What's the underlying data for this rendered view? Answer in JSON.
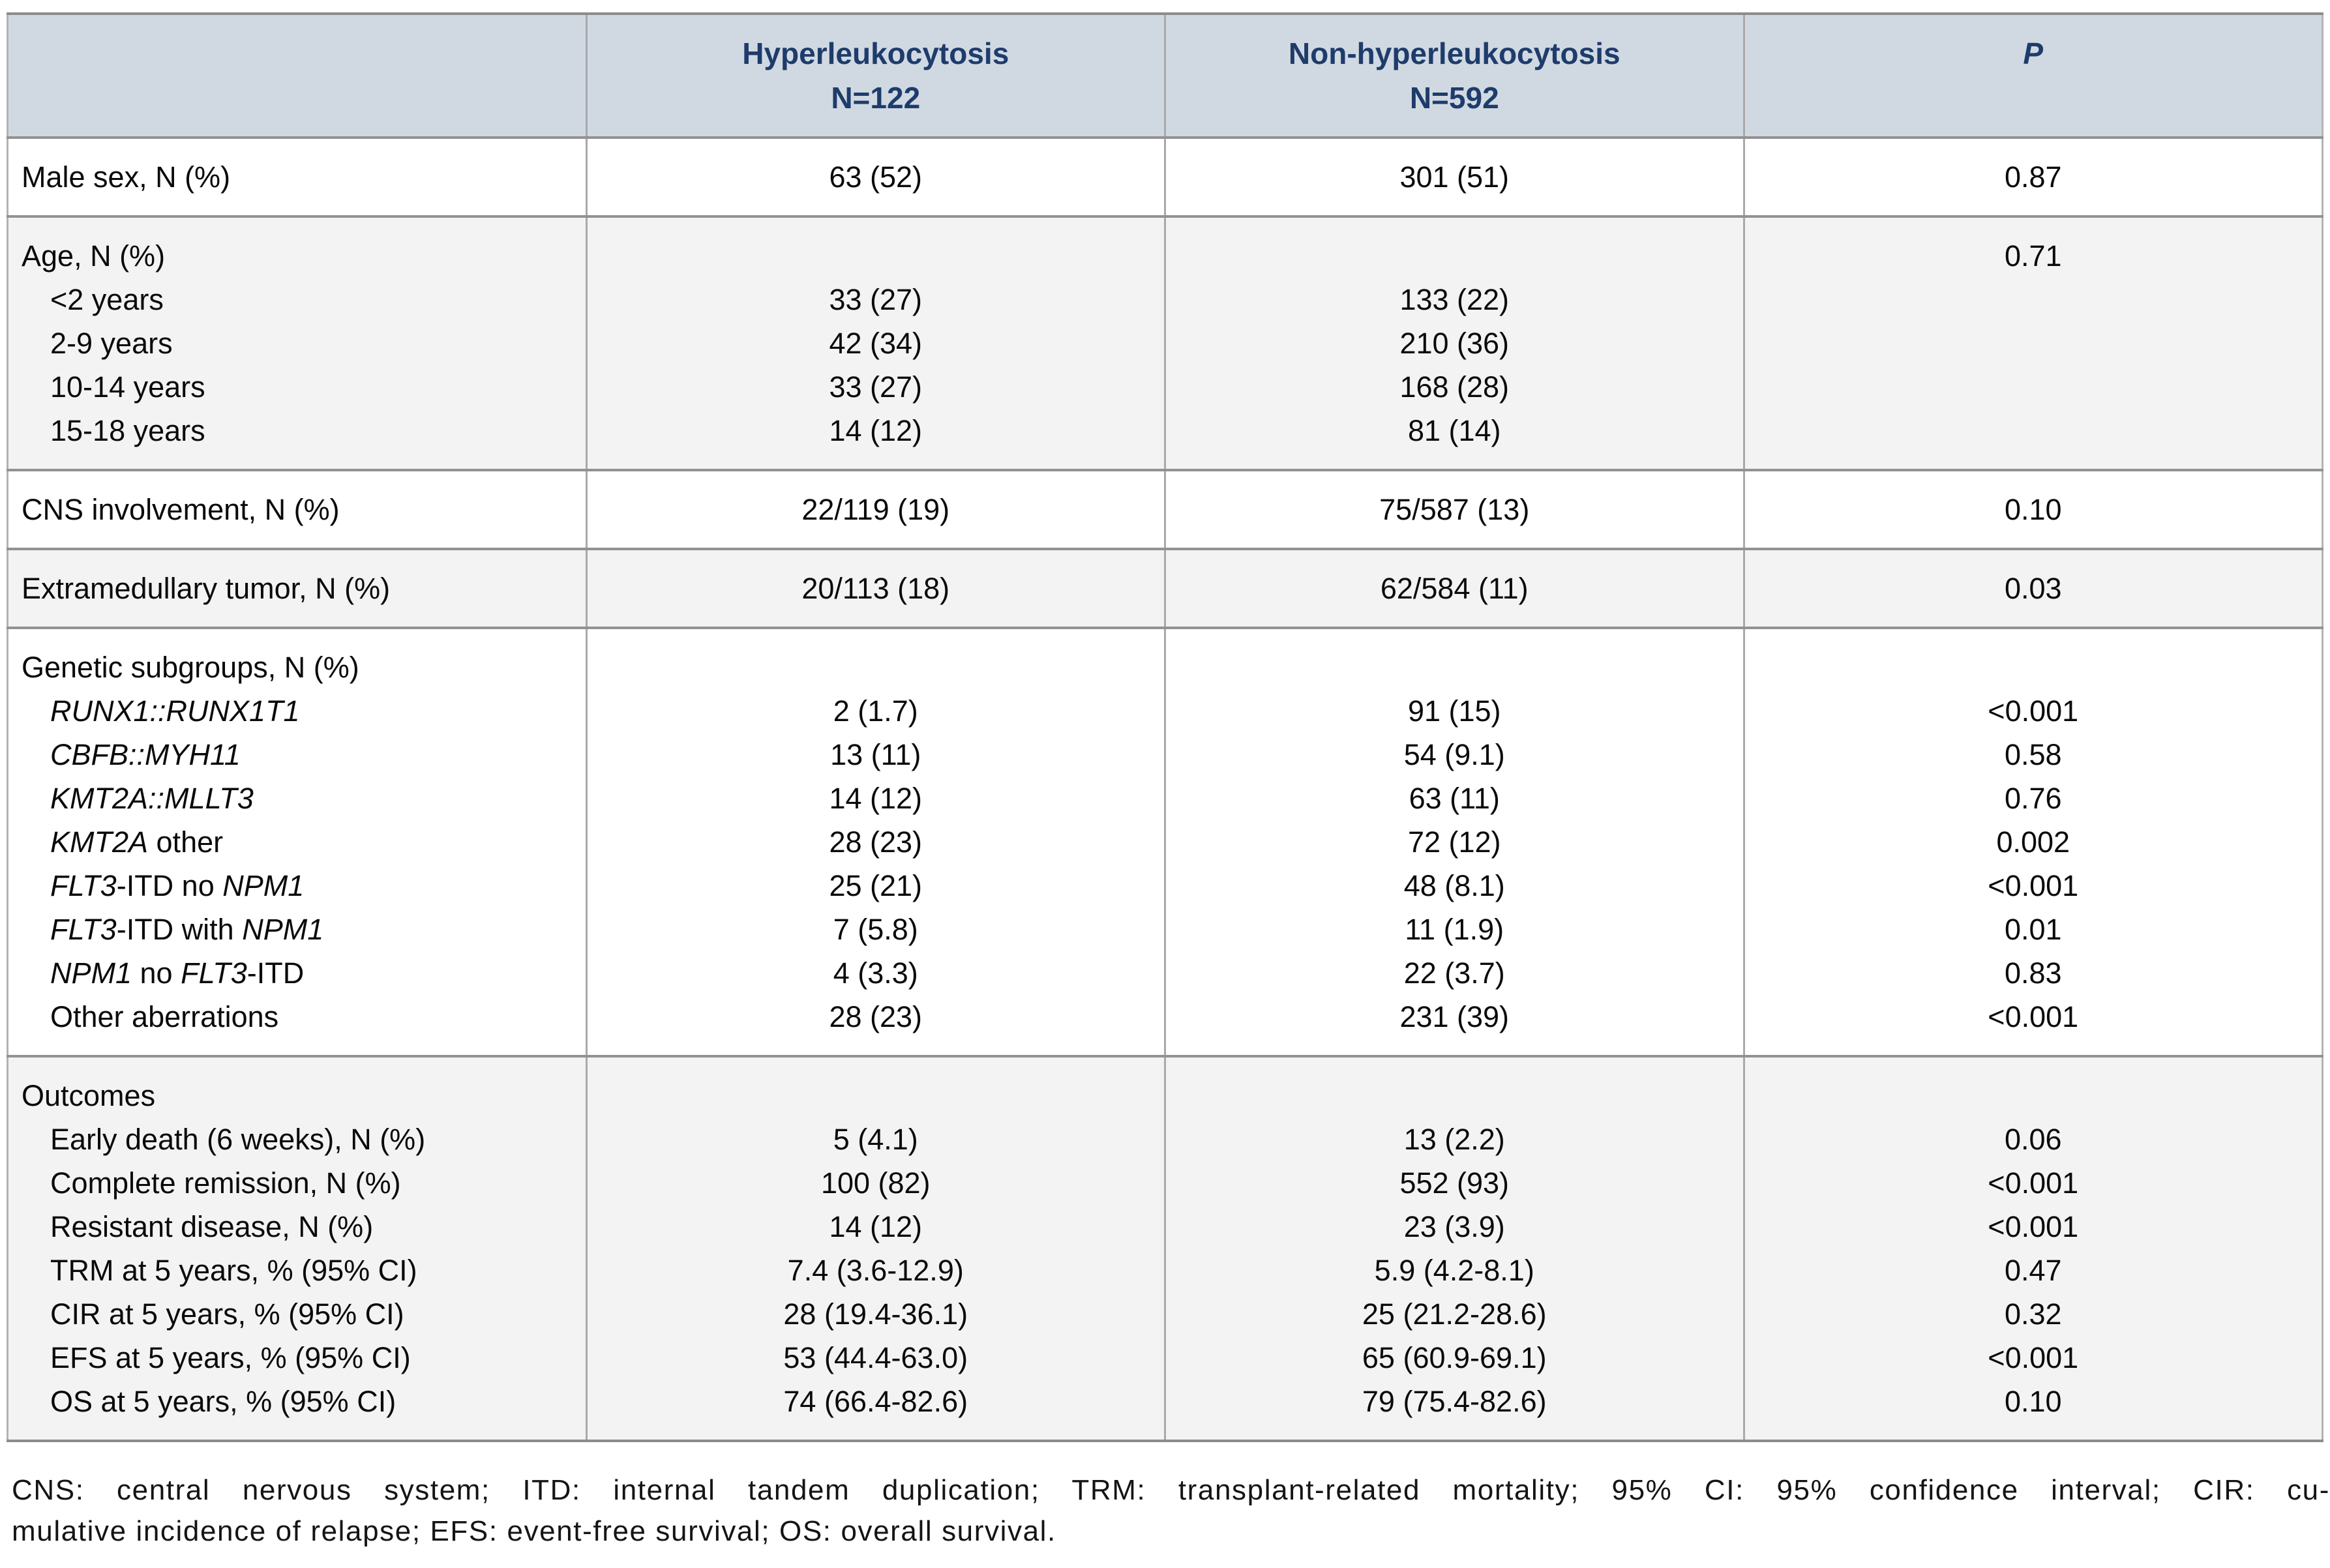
{
  "colors": {
    "header_bg": "#d0d9e2",
    "header_text": "#1e3c6b",
    "shaded_row_bg": "#f3f3f3",
    "horizontal_rule": "#929292",
    "vertical_rule": "#a9a9a9"
  },
  "table": {
    "header": {
      "empty": "",
      "col2": {
        "line1": "Hyperleukocytosis",
        "line2": "N=122"
      },
      "col3": {
        "line1": "Non-hyperleukocytosis",
        "line2": "N=592"
      },
      "p": "P"
    },
    "sections": [
      {
        "name": "male-sex",
        "shaded": false,
        "labels": [
          {
            "indent": false,
            "segments": [
              {
                "text": "Male sex, N (%)",
                "italic": false
              }
            ]
          }
        ],
        "col2": [
          "63 (52)"
        ],
        "col3": [
          "301 (51)"
        ],
        "p": [
          "0.87"
        ]
      },
      {
        "name": "age",
        "shaded": true,
        "labels": [
          {
            "indent": false,
            "segments": [
              {
                "text": "Age, N (%)",
                "italic": false
              }
            ]
          },
          {
            "indent": true,
            "segments": [
              {
                "text": "<2 years",
                "italic": false
              }
            ]
          },
          {
            "indent": true,
            "segments": [
              {
                "text": "2-9 years",
                "italic": false
              }
            ]
          },
          {
            "indent": true,
            "segments": [
              {
                "text": "10-14 years",
                "italic": false
              }
            ]
          },
          {
            "indent": true,
            "segments": [
              {
                "text": "15-18 years",
                "italic": false
              }
            ]
          }
        ],
        "col2": [
          "",
          "33 (27)",
          "42 (34)",
          "33 (27)",
          "14 (12)"
        ],
        "col3": [
          "",
          "133 (22)",
          "210 (36)",
          "168 (28)",
          "81 (14)"
        ],
        "p": [
          "0.71",
          "",
          "",
          "",
          ""
        ]
      },
      {
        "name": "cns-involvement",
        "shaded": false,
        "labels": [
          {
            "indent": false,
            "segments": [
              {
                "text": "CNS involvement, N (%)",
                "italic": false
              }
            ]
          }
        ],
        "col2": [
          "22/119 (19)"
        ],
        "col3": [
          "75/587 (13)"
        ],
        "p": [
          "0.10"
        ]
      },
      {
        "name": "extramedullary-tumor",
        "shaded": true,
        "labels": [
          {
            "indent": false,
            "segments": [
              {
                "text": "Extramedullary tumor, N (%)",
                "italic": false
              }
            ]
          }
        ],
        "col2": [
          "20/113 (18)"
        ],
        "col3": [
          "62/584 (11)"
        ],
        "p": [
          "0.03"
        ]
      },
      {
        "name": "genetic-subgroups",
        "shaded": false,
        "labels": [
          {
            "indent": false,
            "segments": [
              {
                "text": "Genetic subgroups, N (%)",
                "italic": false
              }
            ]
          },
          {
            "indent": true,
            "segments": [
              {
                "text": "RUNX1::RUNX1T1",
                "italic": true
              }
            ]
          },
          {
            "indent": true,
            "segments": [
              {
                "text": "CBFB::MYH11",
                "italic": true
              }
            ]
          },
          {
            "indent": true,
            "segments": [
              {
                "text": "KMT2A::MLLT3",
                "italic": true
              }
            ]
          },
          {
            "indent": true,
            "segments": [
              {
                "text": "KMT2A",
                "italic": true
              },
              {
                "text": " other",
                "italic": false
              }
            ]
          },
          {
            "indent": true,
            "segments": [
              {
                "text": "FLT3",
                "italic": true
              },
              {
                "text": "-ITD no ",
                "italic": false
              },
              {
                "text": "NPM1",
                "italic": true
              }
            ]
          },
          {
            "indent": true,
            "segments": [
              {
                "text": "FLT3",
                "italic": true
              },
              {
                "text": "-ITD with ",
                "italic": false
              },
              {
                "text": "NPM1",
                "italic": true
              }
            ]
          },
          {
            "indent": true,
            "segments": [
              {
                "text": "NPM1",
                "italic": true
              },
              {
                "text": " no ",
                "italic": false
              },
              {
                "text": "FLT3",
                "italic": true
              },
              {
                "text": "-ITD",
                "italic": false
              }
            ]
          },
          {
            "indent": true,
            "segments": [
              {
                "text": "Other aberrations",
                "italic": false
              }
            ]
          }
        ],
        "col2": [
          "",
          "2 (1.7)",
          "13 (11)",
          "14 (12)",
          "28 (23)",
          "25 (21)",
          "7 (5.8)",
          "4 (3.3)",
          "28 (23)"
        ],
        "col3": [
          "",
          "91 (15)",
          "54 (9.1)",
          "63 (11)",
          "72 (12)",
          "48 (8.1)",
          "11 (1.9)",
          "22 (3.7)",
          "231 (39)"
        ],
        "p": [
          "",
          "<0.001",
          "0.58",
          "0.76",
          "0.002",
          "<0.001",
          "0.01",
          "0.83",
          "<0.001"
        ]
      },
      {
        "name": "outcomes",
        "shaded": true,
        "labels": [
          {
            "indent": false,
            "segments": [
              {
                "text": "Outcomes",
                "italic": false
              }
            ]
          },
          {
            "indent": true,
            "segments": [
              {
                "text": "Early death (6 weeks), N (%)",
                "italic": false
              }
            ]
          },
          {
            "indent": true,
            "segments": [
              {
                "text": "Complete remission, N (%)",
                "italic": false
              }
            ]
          },
          {
            "indent": true,
            "segments": [
              {
                "text": "Resistant disease, N (%)",
                "italic": false
              }
            ]
          },
          {
            "indent": true,
            "segments": [
              {
                "text": "TRM at 5 years, % (95% CI)",
                "italic": false
              }
            ]
          },
          {
            "indent": true,
            "segments": [
              {
                "text": "CIR at 5 years, % (95% CI)",
                "italic": false
              }
            ]
          },
          {
            "indent": true,
            "segments": [
              {
                "text": "EFS at 5 years, % (95% CI)",
                "italic": false
              }
            ]
          },
          {
            "indent": true,
            "segments": [
              {
                "text": "OS at 5 years, % (95% CI)",
                "italic": false
              }
            ]
          }
        ],
        "col2": [
          "",
          "5 (4.1)",
          "100 (82)",
          "14 (12)",
          "7.4 (3.6-12.9)",
          "28 (19.4-36.1)",
          "53 (44.4-63.0)",
          "74 (66.4-82.6)"
        ],
        "col3": [
          "",
          "13 (2.2)",
          "552 (93)",
          "23 (3.9)",
          "5.9 (4.2-8.1)",
          "25 (21.2-28.6)",
          "65 (60.9-69.1)",
          "79 (75.4-82.6)"
        ],
        "p": [
          "",
          "0.06",
          "<0.001",
          "<0.001",
          "0.47",
          "0.32",
          "<0.001",
          "0.10"
        ]
      }
    ]
  },
  "footnote": {
    "line1": "CNS: central nervous system; ITD: internal tandem duplication; TRM: transplant-related mortality; 95% CI: 95% confidence interval; CIR: cu-",
    "line2": "mulative incidence of relapse; EFS: event-free survival; OS: overall survival."
  }
}
